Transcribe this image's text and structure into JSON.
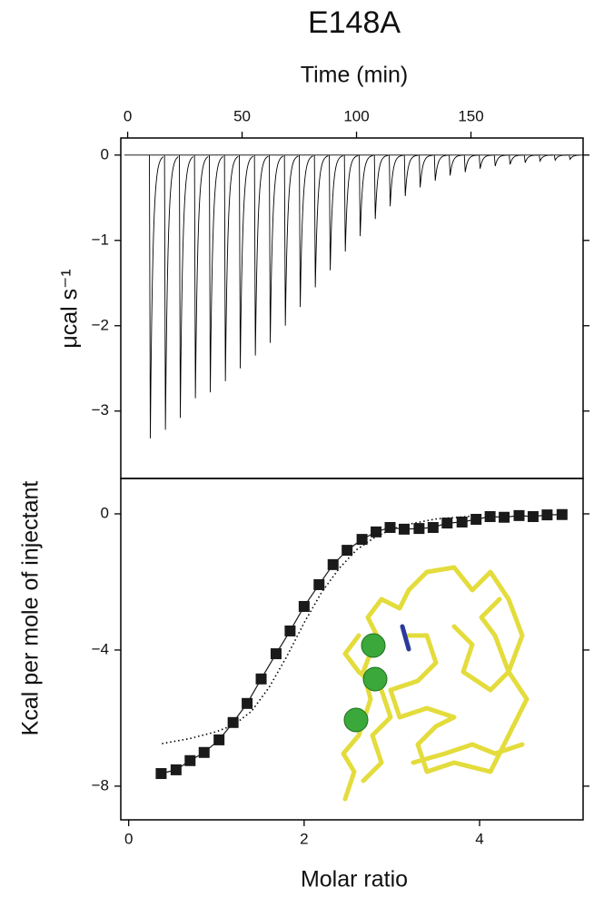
{
  "title": "E148A",
  "chart_data": [
    {
      "type": "peaks",
      "xlabel": "Time (min)",
      "ylabel": "μcal s⁻¹",
      "color": "#000000",
      "x": [
        9.5,
        16.1,
        22.6,
        29.2,
        35.7,
        42.3,
        48.8,
        55.4,
        61.9,
        68.5,
        75.0,
        81.6,
        88.1,
        94.7,
        101.2,
        107.8,
        114.3,
        120.9,
        127.4,
        134.0,
        140.5,
        147.1,
        153.6,
        160.2,
        166.7,
        173.3,
        179.8,
        186.4,
        192.9
      ],
      "values": [
        -3.32,
        -3.22,
        -3.08,
        -2.85,
        -2.78,
        -2.65,
        -2.5,
        -2.35,
        -2.2,
        -2.0,
        -1.78,
        -1.55,
        -1.35,
        -1.13,
        -0.95,
        -0.75,
        -0.6,
        -0.48,
        -0.38,
        -0.3,
        -0.24,
        -0.2,
        -0.16,
        -0.13,
        -0.11,
        -0.09,
        -0.07,
        -0.06,
        -0.05
      ],
      "xlim": [
        -3,
        199
      ],
      "xticks": [
        0,
        50,
        100,
        150
      ],
      "ylim": [
        -3.79,
        0.2
      ],
      "yticks": [
        0,
        {
          "value": -1,
          "label": "−1"
        },
        {
          "value": -2,
          "label": "−2"
        },
        {
          "value": -3,
          "label": "−3"
        }
      ]
    },
    {
      "type": "scatter",
      "xlabel": "Molar ratio",
      "ylabel": "Kcal per mole of injectant",
      "series": [
        {
          "style": "line-markers",
          "color": "#1a1a1a",
          "x": [
            0.37,
            0.54,
            0.7,
            0.86,
            1.03,
            1.19,
            1.35,
            1.51,
            1.68,
            1.84,
            2.0,
            2.17,
            2.33,
            2.49,
            2.66,
            2.82,
            2.98,
            3.14,
            3.31,
            3.47,
            3.63,
            3.8,
            3.96,
            4.12,
            4.28,
            4.45,
            4.61,
            4.77,
            4.94
          ],
          "values": [
            -7.63,
            -7.52,
            -7.25,
            -7.01,
            -6.64,
            -6.13,
            -5.57,
            -4.85,
            -4.11,
            -3.44,
            -2.72,
            -2.08,
            -1.49,
            -1.07,
            -0.75,
            -0.53,
            -0.4,
            -0.45,
            -0.43,
            -0.4,
            -0.27,
            -0.24,
            -0.16,
            -0.08,
            -0.1,
            -0.05,
            -0.08,
            -0.03,
            -0.02
          ]
        },
        {
          "style": "dotted",
          "color": "#000000",
          "x": [
            0.38,
            0.7,
            1.0,
            1.2,
            1.4,
            1.6,
            1.8,
            2.0,
            2.2,
            2.4,
            2.6,
            2.8,
            3.0,
            3.2,
            3.5,
            4.0
          ],
          "values": [
            -6.75,
            -6.6,
            -6.4,
            -6.2,
            -5.8,
            -5.1,
            -4.2,
            -3.2,
            -2.3,
            -1.6,
            -1.05,
            -0.7,
            -0.45,
            -0.3,
            -0.15,
            -0.05
          ]
        }
      ],
      "xlim": [
        -0.09,
        5.18
      ],
      "xticks": [
        0,
        2,
        4
      ],
      "ylim": [
        -8.99,
        1.04
      ],
      "yticks": [
        0,
        {
          "value": -4,
          "label": "−4"
        },
        {
          "value": -8,
          "label": "−8"
        }
      ]
    }
  ]
}
